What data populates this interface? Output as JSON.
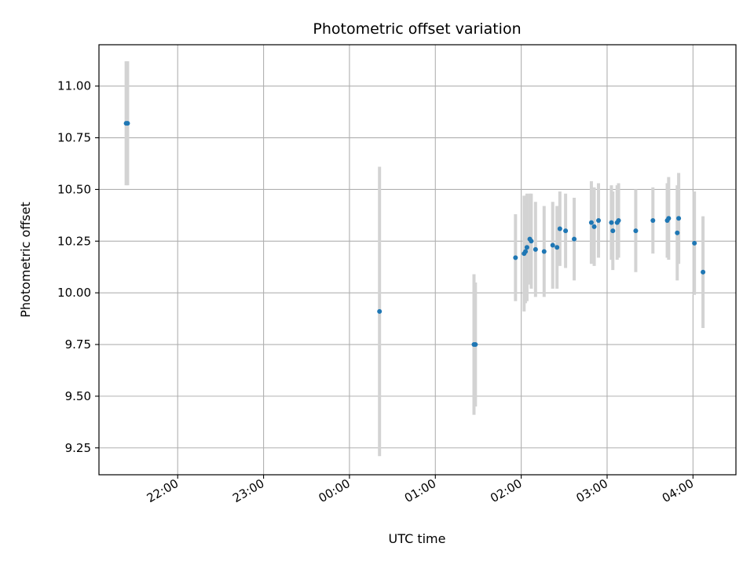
{
  "chart_data": {
    "type": "scatter",
    "title": "Photometric offset variation",
    "xlabel": "UTC time",
    "ylabel": "Photometric offset",
    "x_axis_type": "time",
    "xlim": [
      "21:05",
      "04:30"
    ],
    "ylim": [
      9.12,
      11.2
    ],
    "x_ticks": [
      "22:00",
      "23:00",
      "00:00",
      "01:00",
      "02:00",
      "03:00",
      "04:00"
    ],
    "y_ticks": [
      "9.25",
      "9.50",
      "9.75",
      "10.00",
      "10.25",
      "10.50",
      "10.75",
      "11.00"
    ],
    "grid": true,
    "colors": {
      "points": "#1f77b4",
      "errorbars": "#d3d3d3",
      "grid": "#b0b0b0"
    },
    "series": [
      {
        "points": [
          {
            "t": "21:24",
            "y": 10.82,
            "err": 0.3
          },
          {
            "t": "21:25",
            "y": 10.82,
            "err": 0.3
          },
          {
            "t": "00:21",
            "y": 9.91,
            "err": 0.7
          },
          {
            "t": "01:27",
            "y": 9.75,
            "err": 0.34
          },
          {
            "t": "01:28",
            "y": 9.75,
            "err": 0.3
          },
          {
            "t": "01:56",
            "y": 10.17,
            "err": 0.21
          },
          {
            "t": "02:02",
            "y": 10.19,
            "err": 0.28
          },
          {
            "t": "02:03",
            "y": 10.2,
            "err": 0.25
          },
          {
            "t": "02:04",
            "y": 10.22,
            "err": 0.26
          },
          {
            "t": "02:06",
            "y": 10.26,
            "err": 0.22
          },
          {
            "t": "02:07",
            "y": 10.25,
            "err": 0.23
          },
          {
            "t": "02:10",
            "y": 10.21,
            "err": 0.23
          },
          {
            "t": "02:16",
            "y": 10.2,
            "err": 0.22
          },
          {
            "t": "02:22",
            "y": 10.23,
            "err": 0.21
          },
          {
            "t": "02:25",
            "y": 10.22,
            "err": 0.2
          },
          {
            "t": "02:27",
            "y": 10.31,
            "err": 0.18
          },
          {
            "t": "02:31",
            "y": 10.3,
            "err": 0.18
          },
          {
            "t": "02:37",
            "y": 10.26,
            "err": 0.2
          },
          {
            "t": "02:49",
            "y": 10.34,
            "err": 0.2
          },
          {
            "t": "02:51",
            "y": 10.32,
            "err": 0.19
          },
          {
            "t": "02:54",
            "y": 10.35,
            "err": 0.18
          },
          {
            "t": "03:03",
            "y": 10.34,
            "err": 0.18
          },
          {
            "t": "03:04",
            "y": 10.3,
            "err": 0.19
          },
          {
            "t": "03:07",
            "y": 10.34,
            "err": 0.18
          },
          {
            "t": "03:08",
            "y": 10.35,
            "err": 0.18
          },
          {
            "t": "03:20",
            "y": 10.3,
            "err": 0.2
          },
          {
            "t": "03:32",
            "y": 10.35,
            "err": 0.16
          },
          {
            "t": "03:42",
            "y": 10.35,
            "err": 0.18
          },
          {
            "t": "03:43",
            "y": 10.36,
            "err": 0.2
          },
          {
            "t": "03:49",
            "y": 10.29,
            "err": 0.23
          },
          {
            "t": "03:50",
            "y": 10.36,
            "err": 0.22
          },
          {
            "t": "04:01",
            "y": 10.24,
            "err": 0.25
          },
          {
            "t": "04:07",
            "y": 10.1,
            "err": 0.27
          }
        ]
      }
    ]
  }
}
